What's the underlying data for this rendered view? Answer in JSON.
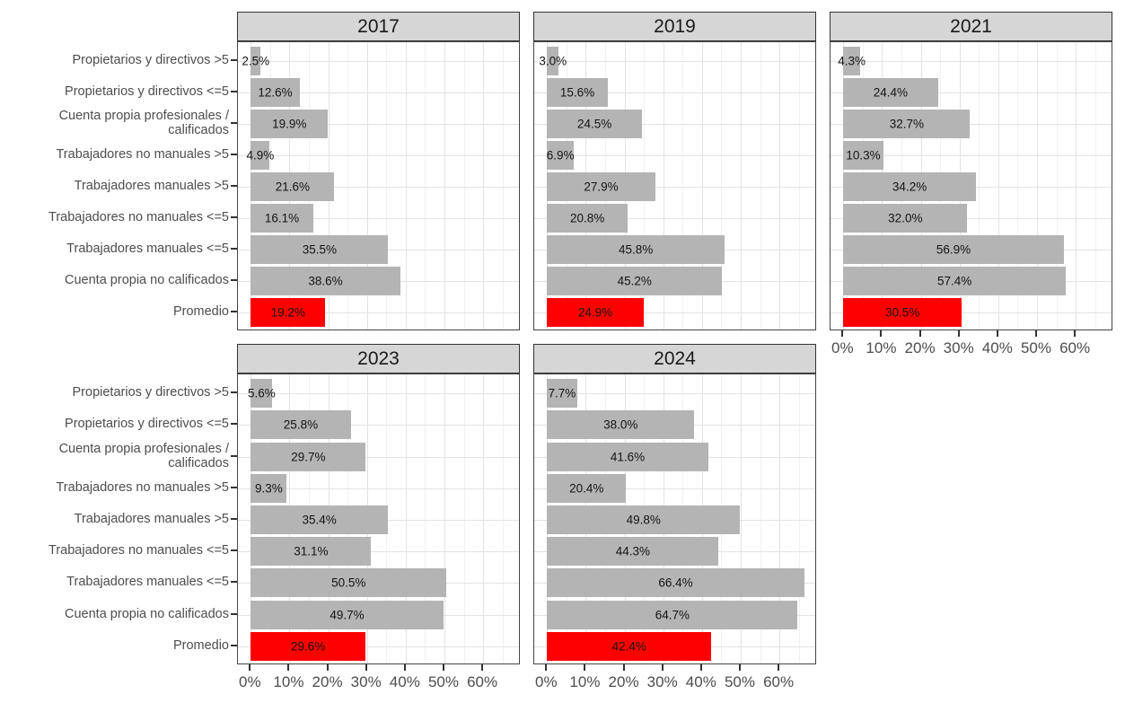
{
  "chart_data": {
    "type": "bar",
    "orientation": "horizontal",
    "title": "",
    "facet_titles": [
      "2017",
      "2019",
      "2021",
      "2023",
      "2024"
    ],
    "categories": [
      "Propietarios y directivos >5",
      "Propietarios y directivos <=5",
      "Cuenta propia profesionales /\ncalificados",
      "Trabajadores no manuales >5",
      "Trabajadores manuales >5",
      "Trabajadores no manuales <=5",
      "Trabajadores manuales <=5",
      "Cuenta propia no calificados",
      "Promedio"
    ],
    "highlight_category": "Promedio",
    "panels": [
      {
        "title": "2017",
        "values": [
          2.5,
          12.6,
          19.9,
          4.9,
          21.6,
          16.1,
          35.5,
          38.6,
          19.2
        ]
      },
      {
        "title": "2019",
        "values": [
          3.0,
          15.6,
          24.5,
          6.9,
          27.9,
          20.8,
          45.8,
          45.2,
          24.9
        ]
      },
      {
        "title": "2021",
        "values": [
          4.3,
          24.4,
          32.7,
          10.3,
          34.2,
          32.0,
          56.9,
          57.4,
          30.5
        ]
      },
      {
        "title": "2023",
        "values": [
          5.6,
          25.8,
          29.7,
          9.3,
          35.4,
          31.1,
          50.5,
          49.7,
          29.6
        ]
      },
      {
        "title": "2024",
        "values": [
          7.7,
          38.0,
          41.6,
          20.4,
          49.8,
          44.3,
          66.4,
          64.7,
          42.4
        ]
      }
    ],
    "value_label_format": "one_decimal_percent",
    "x_axis": {
      "ticks": [
        0,
        10,
        20,
        30,
        40,
        50,
        60
      ],
      "tick_labels": [
        "0%",
        "10%",
        "20%",
        "30%",
        "40%",
        "50%",
        "60%"
      ],
      "range": [
        -3.32,
        69.72
      ],
      "minor_step": 5
    },
    "grid": true,
    "legend": false,
    "colors": {
      "bar": "#b4b4b4",
      "highlight": "#ff0000",
      "strip_bg": "#d6d6d6",
      "strip_border": "#333333",
      "panel_border": "#454545",
      "grid_major": "#e3e3e3",
      "grid_minor": "#f1f1f1",
      "axis_text": "#4d4d4d",
      "tick_mark": "#333333",
      "value_text": "#141414",
      "background": "#ffffff"
    }
  }
}
